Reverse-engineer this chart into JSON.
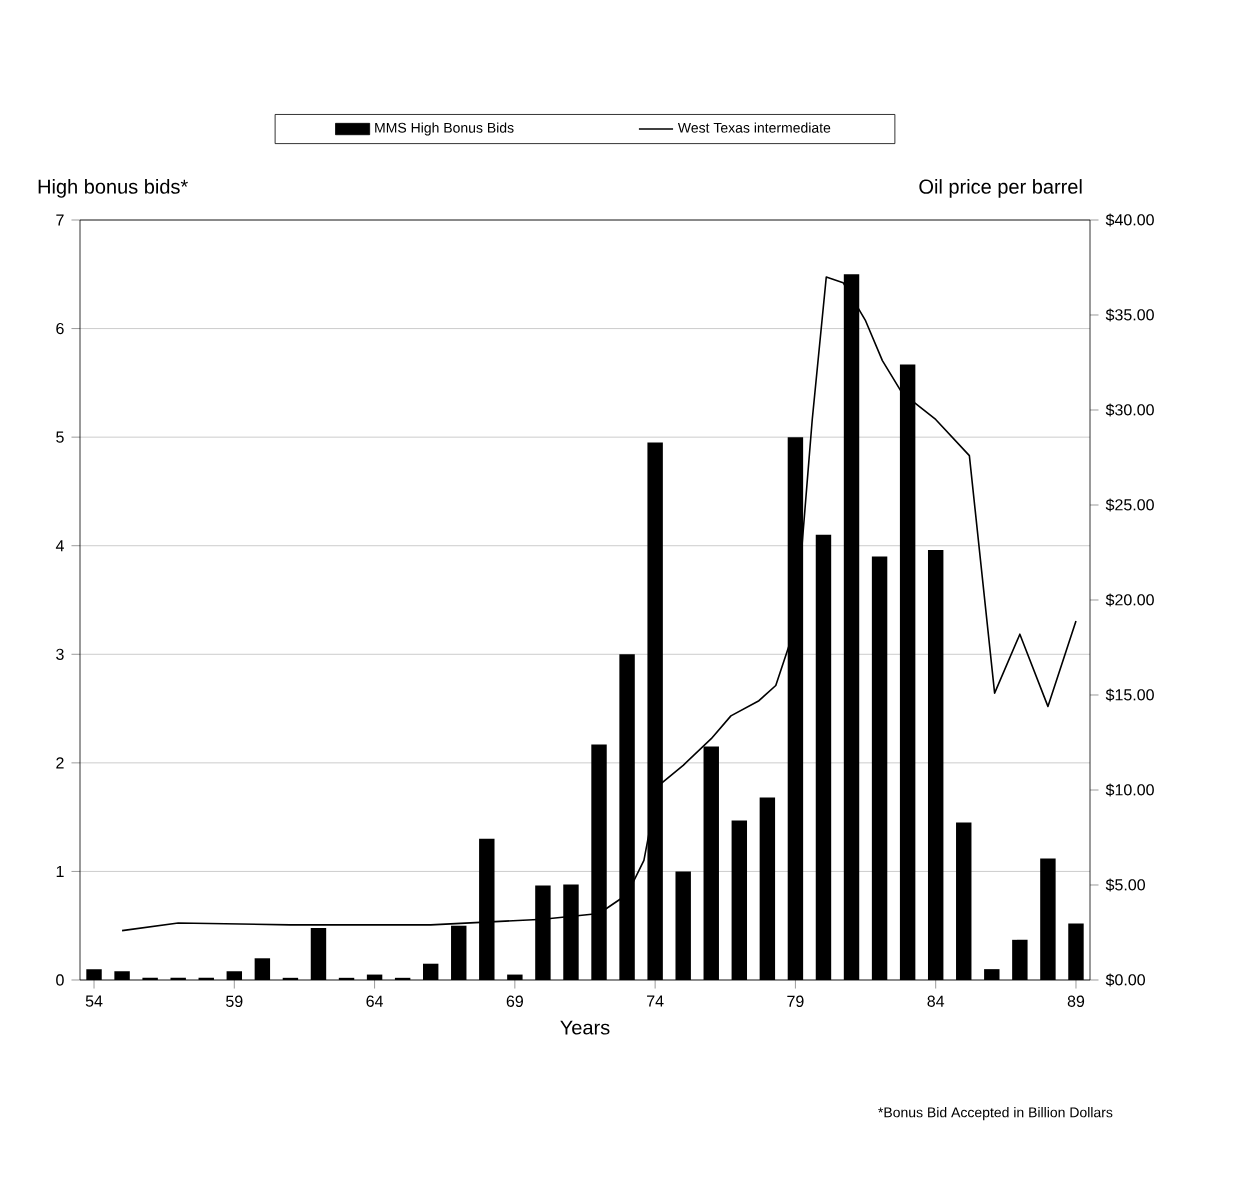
{
  "chart_data": {
    "type": "bar",
    "xlabel": "Years",
    "ylabel": "High bonus bids*",
    "y2label": "Oil price per barrel",
    "annotations": [
      "*Bonus Bid Accepted in Billion Dollars"
    ],
    "x": [
      1954,
      1955,
      1956,
      1957,
      1958,
      1959,
      1960,
      1961,
      1962,
      1963,
      1964,
      1965,
      1966,
      1967,
      1968,
      1969,
      1970,
      1971,
      1972,
      1973,
      1974,
      1975,
      1976,
      1977,
      1978,
      1979,
      1980,
      1981,
      1982,
      1983,
      1984,
      1985,
      1986,
      1987,
      1988,
      1989
    ],
    "series": [
      {
        "name": "MMS High Bonus Bids",
        "color": "#000000",
        "values": [
          0.1,
          0.08,
          0.02,
          0.02,
          0.02,
          0.08,
          0.2,
          0.02,
          0.48,
          0.02,
          0.05,
          0.02,
          0.15,
          0.5,
          1.3,
          0.05,
          0.87,
          0.88,
          2.17,
          3.0,
          4.95,
          1.0,
          2.15,
          1.47,
          1.68,
          5.0,
          4.1,
          6.5,
          3.9,
          5.67,
          3.96,
          1.45,
          0.1,
          0.37,
          1.12,
          0.52
        ]
      },
      {
        "name": "West Texas intermediate",
        "type": "line",
        "axis": "y2",
        "color": "#000000",
        "x": [
          1955,
          1957,
          1961,
          1966,
          1970,
          1972,
          1973,
          1973.6,
          1974.1,
          1975,
          1976,
          1976.7,
          1977.7,
          1978.3,
          1979,
          1979.6,
          1980.1,
          1980.7,
          1981.5,
          1982.1,
          1982.8,
          1984,
          1985.2,
          1986.1,
          1987,
          1988,
          1989
        ],
        "values": [
          2.6,
          3.0,
          2.9,
          2.9,
          3.2,
          3.5,
          4.5,
          6.3,
          10.2,
          11.3,
          12.7,
          13.9,
          14.7,
          15.5,
          18.6,
          29.5,
          37.0,
          36.7,
          34.7,
          32.6,
          30.9,
          29.5,
          27.6,
          15.1,
          18.2,
          14.4,
          18.9
        ]
      }
    ],
    "xlim": [
      1953.5,
      1989.5
    ],
    "xticks": [
      {
        "value": 1954,
        "label": "54"
      },
      {
        "value": 1959,
        "label": "59"
      },
      {
        "value": 1964,
        "label": "64"
      },
      {
        "value": 1969,
        "label": "69"
      },
      {
        "value": 1974,
        "label": "74"
      },
      {
        "value": 1979,
        "label": "79"
      },
      {
        "value": 1984,
        "label": "84"
      },
      {
        "value": 1989,
        "label": "89"
      }
    ],
    "ylim": [
      0,
      7
    ],
    "yticks": [
      0,
      1,
      2,
      3,
      4,
      5,
      6,
      7
    ],
    "y2lim": [
      0,
      40
    ],
    "y2ticks": [
      {
        "value": 0,
        "label": "$0.00"
      },
      {
        "value": 5,
        "label": "$5.00"
      },
      {
        "value": 10,
        "label": "$10.00"
      },
      {
        "value": 15,
        "label": "$15.00"
      },
      {
        "value": 20,
        "label": "$20.00"
      },
      {
        "value": 25,
        "label": "$25.00"
      },
      {
        "value": 30,
        "label": "$30.00"
      },
      {
        "value": 35,
        "label": "$35.00"
      },
      {
        "value": 40,
        "label": "$40.00"
      }
    ],
    "grid": "y",
    "legend": "top"
  }
}
